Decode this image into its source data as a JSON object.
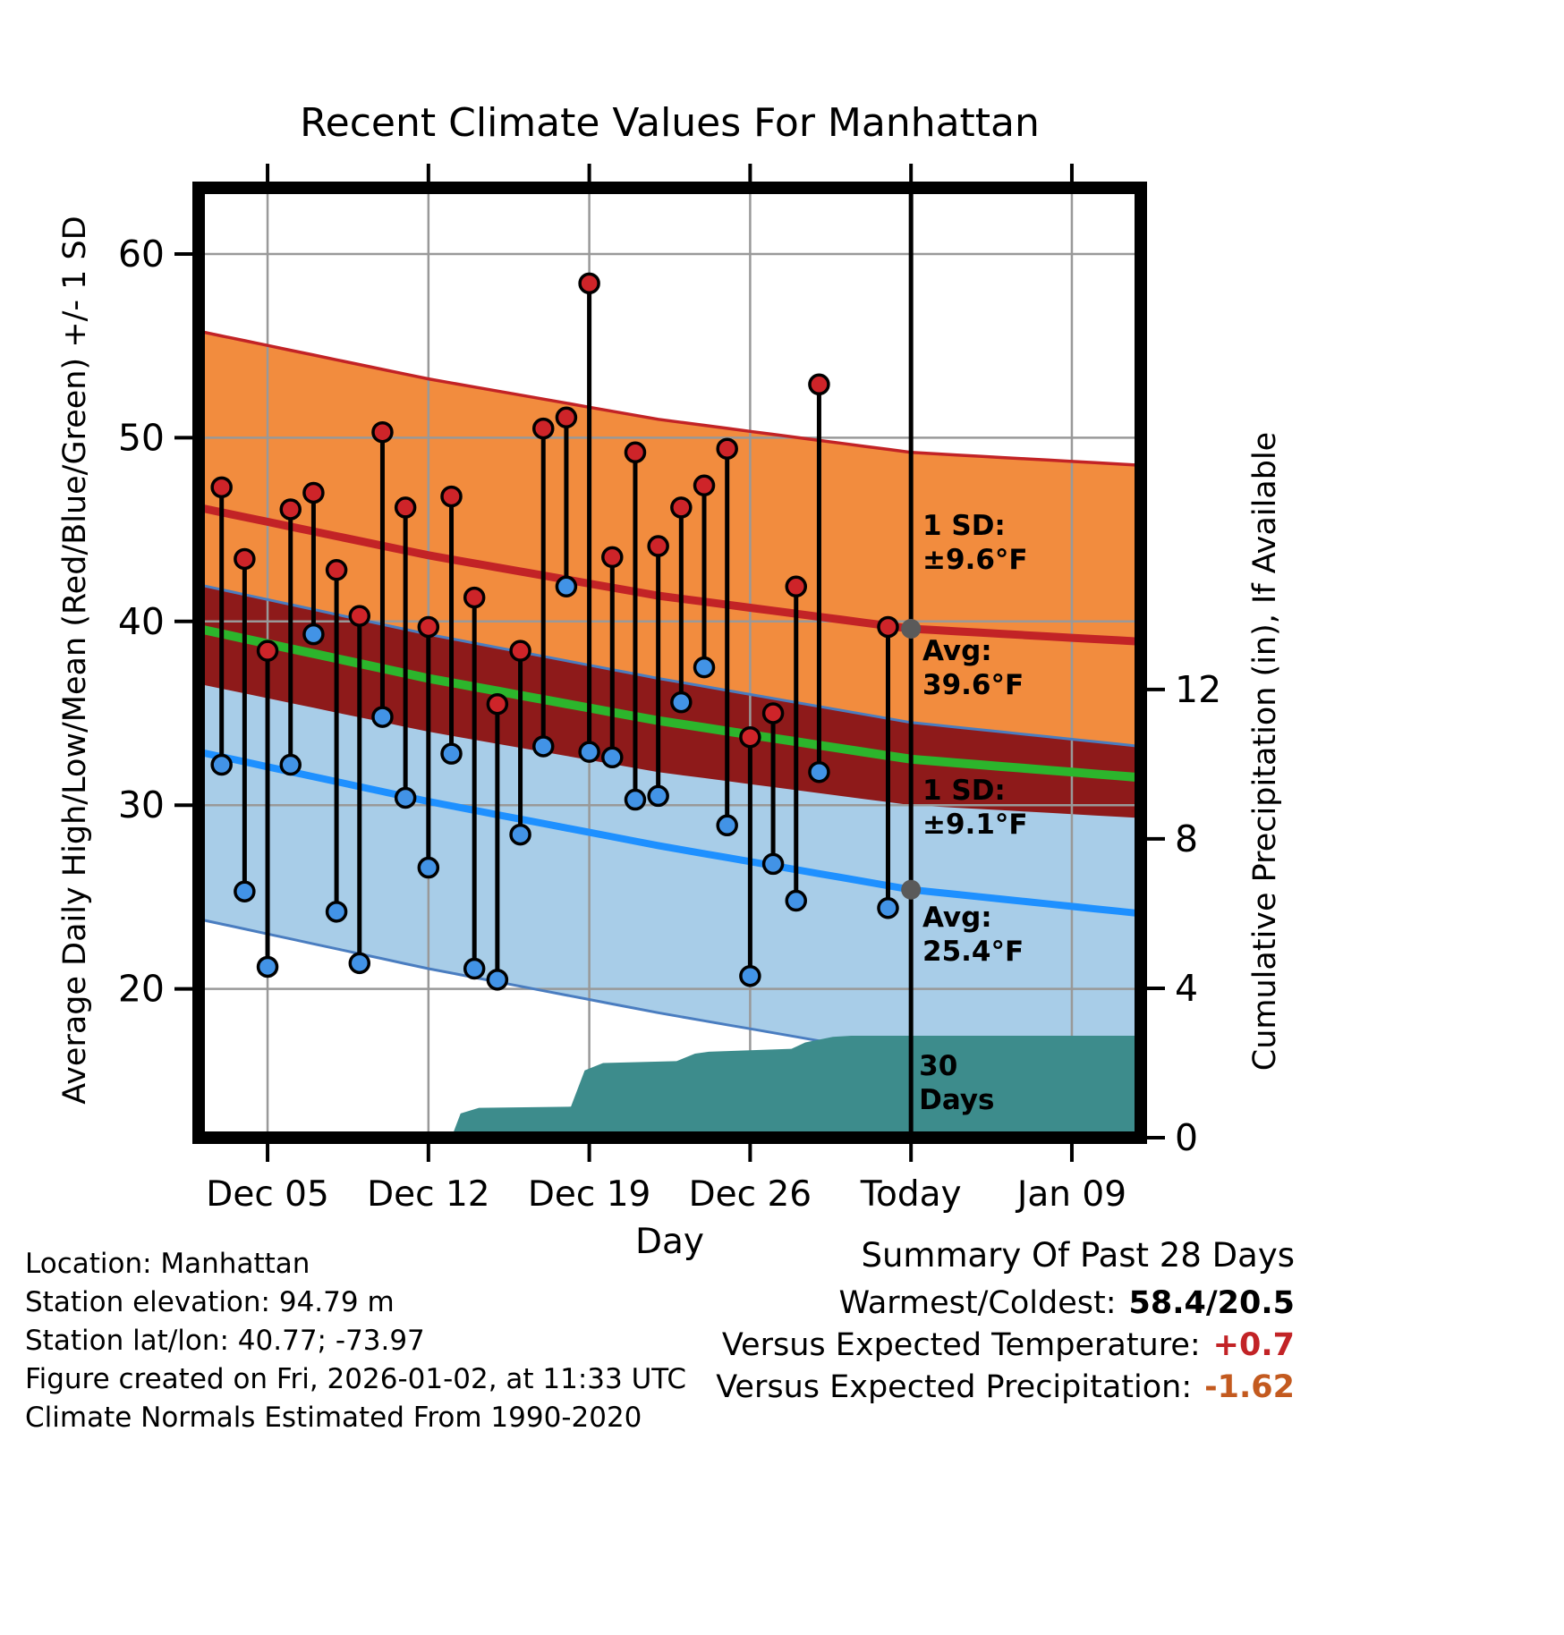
{
  "title": "Recent Climate Values For Manhattan",
  "axes": {
    "left_label": "Average Daily High/Low/Mean (Red/Blue/Green) +/- 1 SD",
    "right_label": "Cumulative Precipitation (in), If Available",
    "x_label": "Day"
  },
  "chart_data": {
    "type": "line",
    "subtype": "climate-daily-high-low-with-normal-bands",
    "temp_axis": {
      "ticks": [
        20,
        30,
        40,
        50,
        60
      ],
      "range": [
        11.9,
        63.6
      ]
    },
    "precip_axis": {
      "ticks": [
        0,
        4,
        8,
        12
      ],
      "range": [
        0,
        25.43
      ]
    },
    "x_axis": {
      "day0_date": "Dec 02",
      "range_days": [
        0,
        41
      ],
      "tick_labels": [
        "Dec 05",
        "Dec 12",
        "Dec 19",
        "Dec 26",
        "Today",
        "Jan 09"
      ],
      "tick_days": [
        3,
        10,
        17,
        24,
        31,
        38
      ],
      "grid_days": [
        3,
        10,
        17,
        24,
        38
      ]
    },
    "observations": [
      {
        "date": "Dec 03",
        "day": 1,
        "high": 47.3,
        "low": 32.2
      },
      {
        "date": "Dec 04",
        "day": 2,
        "high": 43.4,
        "low": 25.3
      },
      {
        "date": "Dec 05",
        "day": 3,
        "high": 38.4,
        "low": 21.2
      },
      {
        "date": "Dec 06",
        "day": 4,
        "high": 46.1,
        "low": 32.2
      },
      {
        "date": "Dec 07",
        "day": 5,
        "high": 47.0,
        "low": 39.3
      },
      {
        "date": "Dec 08",
        "day": 6,
        "high": 42.8,
        "low": 24.2
      },
      {
        "date": "Dec 09",
        "day": 7,
        "high": 40.3,
        "low": 21.4
      },
      {
        "date": "Dec 10",
        "day": 8,
        "high": 50.3,
        "low": 34.8
      },
      {
        "date": "Dec 11",
        "day": 9,
        "high": 46.2,
        "low": 30.4
      },
      {
        "date": "Dec 12",
        "day": 10,
        "high": 39.7,
        "low": 26.6
      },
      {
        "date": "Dec 13",
        "day": 11,
        "high": 46.8,
        "low": 32.8
      },
      {
        "date": "Dec 14",
        "day": 12,
        "high": 41.3,
        "low": 21.1
      },
      {
        "date": "Dec 15",
        "day": 13,
        "high": 35.5,
        "low": 20.5
      },
      {
        "date": "Dec 16",
        "day": 14,
        "high": 38.4,
        "low": 28.4
      },
      {
        "date": "Dec 17",
        "day": 15,
        "high": 50.5,
        "low": 33.2
      },
      {
        "date": "Dec 18",
        "day": 16,
        "high": 51.1,
        "low": 41.9
      },
      {
        "date": "Dec 19",
        "day": 17,
        "high": 58.4,
        "low": 32.9
      },
      {
        "date": "Dec 20",
        "day": 18,
        "high": 43.5,
        "low": 32.6
      },
      {
        "date": "Dec 21",
        "day": 19,
        "high": 49.2,
        "low": 30.3
      },
      {
        "date": "Dec 22",
        "day": 20,
        "high": 44.1,
        "low": 30.5
      },
      {
        "date": "Dec 23",
        "day": 21,
        "high": 46.2,
        "low": 35.6
      },
      {
        "date": "Dec 24",
        "day": 22,
        "high": 47.4,
        "low": 37.5
      },
      {
        "date": "Dec 25",
        "day": 23,
        "high": 49.4,
        "low": 28.9
      },
      {
        "date": "Dec 26",
        "day": 24,
        "high": 33.7,
        "low": 20.7
      },
      {
        "date": "Dec 27",
        "day": 25,
        "high": 35.0,
        "low": 26.8
      },
      {
        "date": "Dec 28",
        "day": 26,
        "high": 41.9,
        "low": 24.8
      },
      {
        "date": "Dec 29",
        "day": 27,
        "high": 52.9,
        "low": 31.8
      },
      {
        "date": "Jan 01",
        "day": 30,
        "high": 39.7,
        "low": 24.4
      }
    ],
    "normals": {
      "anchor_days": [
        0,
        10,
        20,
        31,
        41
      ],
      "high_avg": [
        46.2,
        43.6,
        41.4,
        39.6,
        38.9
      ],
      "low_avg": [
        32.9,
        30.2,
        27.8,
        25.4,
        24.1
      ],
      "mean": [
        39.6,
        36.9,
        34.6,
        32.5,
        31.5
      ],
      "high_sd": 9.6,
      "low_sd": 9.1
    },
    "precip_cumulative": {
      "days": [
        0,
        11,
        11.4,
        12.2,
        16.2,
        16.8,
        17.6,
        20.8,
        21.6,
        22.2,
        25.8,
        26.4,
        27.6,
        28.4,
        41
      ],
      "values": [
        0,
        0,
        0.65,
        0.8,
        0.83,
        1.8,
        2.0,
        2.05,
        2.25,
        2.3,
        2.38,
        2.55,
        2.7,
        2.73,
        2.73
      ]
    },
    "today": {
      "day": 31,
      "label": "Today",
      "avg_high": 39.6,
      "avg_low": 25.4
    },
    "annotations": [
      {
        "x_day": 31.5,
        "y_temp": 44.7,
        "lines": [
          "1 SD:",
          "±9.6°F"
        ],
        "color": "#7D7D7D"
      },
      {
        "x_day": 31.5,
        "y_temp": 37.9,
        "lines": [
          "Avg:",
          "39.6°F"
        ],
        "color": "#7D7D7D"
      },
      {
        "x_day": 31.5,
        "y_temp": 30.3,
        "lines": [
          "1 SD:",
          "±9.1°F"
        ],
        "color": "#7D7D7D"
      },
      {
        "x_day": 31.5,
        "y_temp": 23.4,
        "lines": [
          "Avg:",
          "25.4°F"
        ],
        "color": "#7D7D7D"
      },
      {
        "x_day": 31.35,
        "y_temp": 15.3,
        "lines": [
          "30",
          "Days"
        ],
        "color": "#000000"
      }
    ],
    "colors": {
      "high_band": "#F28C3E",
      "low_band": "#A8CDE8",
      "overlap_band": "#8E1A1A",
      "high_line": "#C22326",
      "low_line": "#1E90FF",
      "low_edge": "#4A7DC0",
      "mean_line": "#2CB52C",
      "precip_area": "#3D8C8C",
      "high_dot": "#CE2429",
      "low_dot": "#4293E6",
      "today_dot": "#5A5A5A",
      "grid": "#999999"
    }
  },
  "footer_left": [
    "Location: Manhattan",
    "Station elevation: 94.79 m",
    "Station lat/lon: 40.77; -73.97",
    "Figure created on Fri, 2026-01-02, at 11:33 UTC",
    "Climate Normals Estimated From 1990-2020"
  ],
  "summary": {
    "title": "Summary Of Past 28 Days",
    "rows": [
      {
        "label": "Warmest/Coldest:",
        "value": "58.4/20.5",
        "color": "#000000"
      },
      {
        "label": "Versus Expected Temperature:",
        "value": "+0.7",
        "color": "#C22326"
      },
      {
        "label": "Versus Expected Precipitation:",
        "value": "-1.62",
        "color": "#C35A1F"
      }
    ]
  }
}
